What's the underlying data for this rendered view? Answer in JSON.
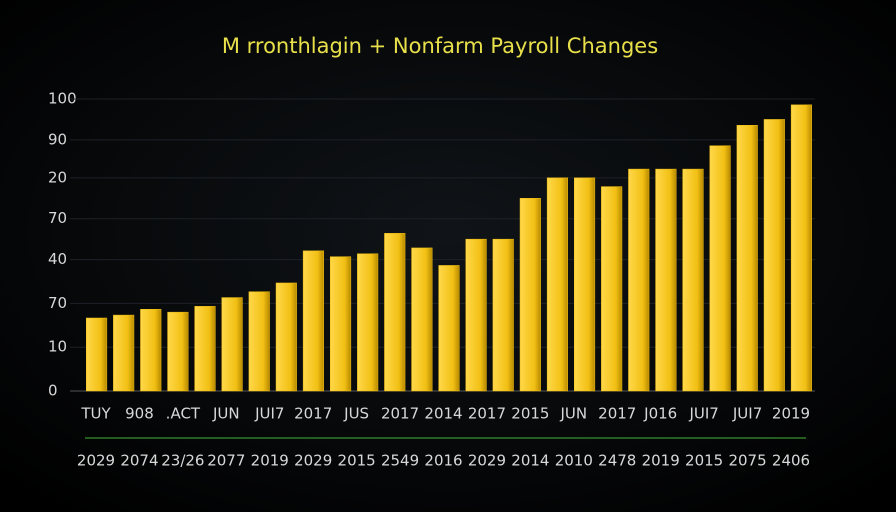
{
  "chart_data": {
    "type": "bar",
    "title": "M rronthlagin + Nonfarm Payroll Changes",
    "categories": [
      null,
      null,
      null,
      null,
      null,
      null,
      null,
      null,
      null,
      null,
      null,
      null,
      null,
      null,
      null,
      null,
      null,
      null,
      null,
      null,
      null,
      null,
      null,
      null,
      null,
      null,
      null
    ],
    "values": [
      25,
      26,
      28,
      27,
      29,
      32,
      34,
      37,
      48,
      46,
      47,
      54,
      49,
      43,
      52,
      52,
      66,
      73,
      73,
      70,
      76,
      76,
      76,
      84,
      91,
      93,
      98
    ],
    "color": "#f2c014",
    "ylim": [
      0,
      100
    ],
    "yticks": [
      0,
      {
        "value": 15,
        "label": "10"
      },
      {
        "value": 30,
        "label": "70"
      },
      {
        "value": 45,
        "label": "40"
      },
      {
        "value": 59,
        "label": "70"
      },
      {
        "value": 73,
        "label": "20"
      },
      {
        "value": 86,
        "label": "90"
      },
      100
    ],
    "grid": true,
    "x_labels_top": [
      "TUY",
      "908",
      ".ACT",
      "JUN",
      "JUI7",
      "2017",
      "JUS",
      "2017",
      "2014",
      "2017",
      "2015",
      "JUN",
      "2017",
      "J016",
      "JUI7",
      "JUI7",
      "2019"
    ],
    "x_labels_bottom": [
      "2029",
      "2074",
      "23/26",
      "2077",
      "2019",
      "2029",
      "2015",
      "2549",
      "2016",
      "2029",
      "2014",
      "2010",
      "2478",
      "2019",
      "2015",
      "2075",
      "2406"
    ]
  }
}
